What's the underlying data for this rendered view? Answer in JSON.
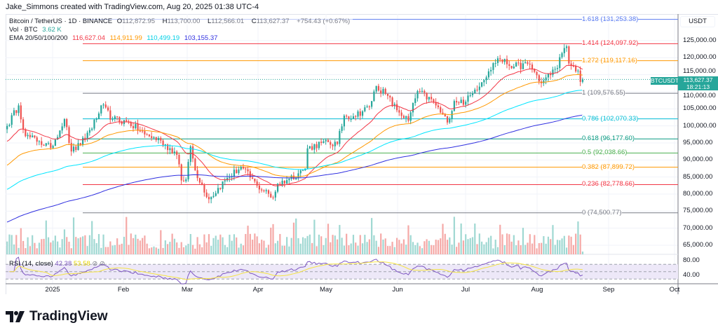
{
  "header": {
    "title": "Jake_Simmons created with TradingView.com, Aug 20, 2025 01:38 UTC-4"
  },
  "legend": {
    "symbol": "Bitcoin / TetherUS · 1D · BINANCE",
    "o_label": "O",
    "o": "112,872.95",
    "h_label": "H",
    "h": "113,700.00",
    "l_label": "L",
    "l": "112,566.01",
    "c_label": "C",
    "c": "113,627.37",
    "change": "+754.43 (+0.67%)",
    "vol_label": "Vol · BTC",
    "vol": "3.62 K",
    "ema_label": "EMA 20/50/100/200",
    "ema20": "116,627.04",
    "ema50": "114,911.99",
    "ema100": "110,499.19",
    "ema200": "103,155.37"
  },
  "colors": {
    "up": "#26a69a",
    "down": "#ef5350",
    "ema20": "#f23645",
    "ema50": "#ff9800",
    "ema100": "#00e5ff",
    "ema200": "#3030e0",
    "rsi": "#7e57c2",
    "rsi_ma": "#f5e342"
  },
  "price_axis": {
    "unit": "USDT",
    "ticks": [
      "125,000.00",
      "120,000.00",
      "115,000.00",
      "110,000.00",
      "105,000.00",
      "100,000.00",
      "95,000.00",
      "90,000.00",
      "85,000.00",
      "80,000.00",
      "75,000.00",
      "70,000.00",
      "65,000.00"
    ],
    "rsi_ticks": [
      "80.00",
      "40.00"
    ]
  },
  "time_axis": {
    "ticks": [
      "2025",
      "Feb",
      "Mar",
      "Apr",
      "May",
      "Jun",
      "Jul",
      "Aug",
      "Sep",
      "Oct"
    ]
  },
  "price_tag": {
    "symbol": "BTCUSDT",
    "price": "113,627.37",
    "countdown": "18:21:13"
  },
  "fib_levels": [
    {
      "label": "1.618 (131,253.38)",
      "value": 131253.38,
      "color": "#5b7cf0"
    },
    {
      "label": "1.414 (124,097.92)",
      "value": 124097.92,
      "color": "#f23645"
    },
    {
      "label": "1.272 (119,117.16)",
      "value": 119117.16,
      "color": "#ff9800"
    },
    {
      "label": "1 (109,576.55)",
      "value": 109576.55,
      "color": "#787b86"
    },
    {
      "label": "0.786 (102,070.33)",
      "value": 102070.33,
      "color": "#00bcd4"
    },
    {
      "label": "0.618 (96,177.60)",
      "value": 96177.6,
      "color": "#089981"
    },
    {
      "label": "0.5 (92,038.66)",
      "value": 92038.66,
      "color": "#4caf50"
    },
    {
      "label": "0.382 (87,899.72)",
      "value": 87899.72,
      "color": "#ff9800"
    },
    {
      "label": "0.236 (82,778.66)",
      "value": 82778.66,
      "color": "#f23645"
    },
    {
      "label": "0 (74,500.77)",
      "value": 74500.77,
      "color": "#787b86"
    }
  ],
  "rsi": {
    "label": "RSI (14, close)",
    "value": "42.38",
    "ma_value": "53.58"
  },
  "brand": {
    "name": "TradingView"
  },
  "chart_data": {
    "type": "candlestick",
    "interval": "1D",
    "ylim": [
      62000,
      133000
    ],
    "x_range": [
      "2024-12-12",
      "2025-10-01"
    ],
    "close_anchors": [
      [
        "2024-12-12",
        100000
      ],
      [
        "2024-12-17",
        106000
      ],
      [
        "2024-12-20",
        97000
      ],
      [
        "2024-12-26",
        95500
      ],
      [
        "2024-12-31",
        93500
      ],
      [
        "2025-01-06",
        102000
      ],
      [
        "2025-01-09",
        92500
      ],
      [
        "2025-01-13",
        94500
      ],
      [
        "2025-01-20",
        102000
      ],
      [
        "2025-01-22",
        106000
      ],
      [
        "2025-01-27",
        102000
      ],
      [
        "2025-02-03",
        101000
      ],
      [
        "2025-02-10",
        97500
      ],
      [
        "2025-02-17",
        95700
      ],
      [
        "2025-02-24",
        91500
      ],
      [
        "2025-02-26",
        84000
      ],
      [
        "2025-02-28",
        84300
      ],
      [
        "2025-03-02",
        94000
      ],
      [
        "2025-03-04",
        87000
      ],
      [
        "2025-03-10",
        78500
      ],
      [
        "2025-03-17",
        84000
      ],
      [
        "2025-03-24",
        88000
      ],
      [
        "2025-03-31",
        82500
      ],
      [
        "2025-04-07",
        79000
      ],
      [
        "2025-04-09",
        83000
      ],
      [
        "2025-04-14",
        84500
      ],
      [
        "2025-04-21",
        87500
      ],
      [
        "2025-04-22",
        93400
      ],
      [
        "2025-04-28",
        95000
      ],
      [
        "2025-05-05",
        94700
      ],
      [
        "2025-05-08",
        103000
      ],
      [
        "2025-05-12",
        102800
      ],
      [
        "2025-05-19",
        105600
      ],
      [
        "2025-05-22",
        111700
      ],
      [
        "2025-05-26",
        109400
      ],
      [
        "2025-05-31",
        104600
      ],
      [
        "2025-06-05",
        101500
      ],
      [
        "2025-06-09",
        110200
      ],
      [
        "2025-06-16",
        107000
      ],
      [
        "2025-06-22",
        101000
      ],
      [
        "2025-06-25",
        107300
      ],
      [
        "2025-06-30",
        107100
      ],
      [
        "2025-07-03",
        109600
      ],
      [
        "2025-07-10",
        116000
      ],
      [
        "2025-07-14",
        119800
      ],
      [
        "2025-07-21",
        117400
      ],
      [
        "2025-07-28",
        118000
      ],
      [
        "2025-08-02",
        112500
      ],
      [
        "2025-08-08",
        116700
      ],
      [
        "2025-08-13",
        123300
      ],
      [
        "2025-08-14",
        118300
      ],
      [
        "2025-08-18",
        116200
      ],
      [
        "2025-08-19",
        112900
      ],
      [
        "2025-08-20",
        113627.37
      ]
    ],
    "ema_start": {
      "ema20": 95000,
      "ema50": 88000,
      "ema100": 81000,
      "ema200": 71500
    },
    "ema_end": {
      "ema20": 116627.04,
      "ema50": 114911.99,
      "ema100": 110499.19,
      "ema200": 103155.37
    },
    "rsi_levels": [
      70,
      50,
      30
    ]
  }
}
